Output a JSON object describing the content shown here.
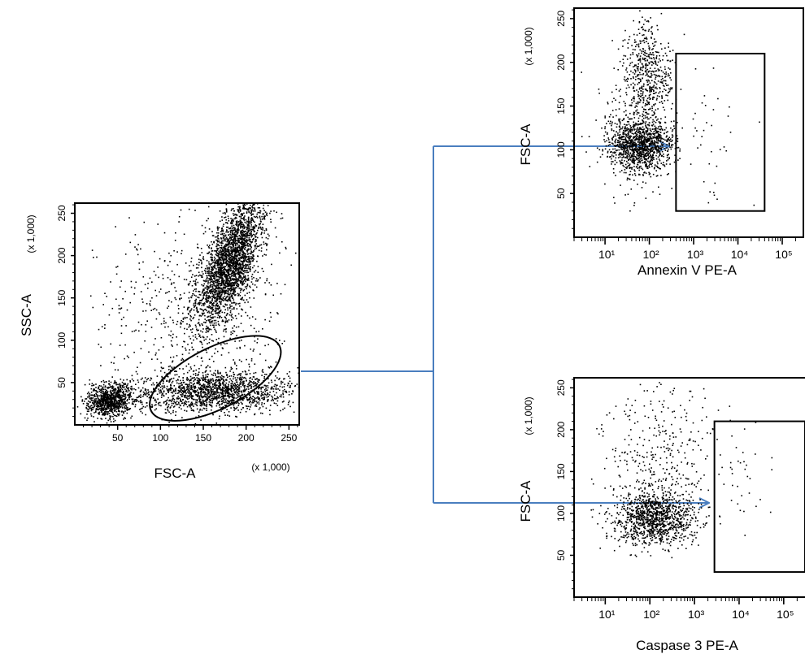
{
  "colors": {
    "arrow": "#4a7ebf",
    "dots": "#000000",
    "frame": "#000000"
  },
  "chart_data": [
    {
      "type": "scatter",
      "panel": "main",
      "xlabel": "FSC-A",
      "ylabel": "SSC-A",
      "x_unit": "(x 1,000)",
      "y_unit": "(x 1,000)",
      "xlim": [
        0,
        262
      ],
      "ylim": [
        0,
        262
      ],
      "x_ticks": [
        50,
        100,
        150,
        200,
        250
      ],
      "y_ticks": [
        50,
        100,
        150,
        200,
        250
      ],
      "x_tick_labels": [
        "50",
        "100",
        "150",
        "200",
        "250"
      ],
      "y_tick_labels": [
        "50",
        "100",
        "150",
        "200",
        "250"
      ],
      "clusters": [
        {
          "cx": 180,
          "cy": 190,
          "sx": 15,
          "sy": 38,
          "n": 2600,
          "tilt": 0.55
        },
        {
          "cx": 160,
          "cy": 40,
          "sx": 45,
          "sy": 12,
          "n": 1600,
          "tilt": 0.3
        },
        {
          "cx": 40,
          "cy": 30,
          "sx": 13,
          "sy": 10,
          "n": 900,
          "tilt": 0.25
        },
        {
          "cx": 140,
          "cy": 130,
          "sx": 60,
          "sy": 60,
          "n": 600,
          "tilt": 0
        }
      ],
      "gate": {
        "shape": "ellipse",
        "cx": 164,
        "cy": 55,
        "rx": 84,
        "ry": 36,
        "angle_deg": 27
      }
    },
    {
      "type": "scatter",
      "panel": "annexin",
      "xlabel": "Annexin V PE-A",
      "ylabel": "FSC-A",
      "y_unit": "(x 1,000)",
      "x_scale": "log",
      "xlim": [
        2,
        300000
      ],
      "ylim": [
        0,
        262
      ],
      "x_ticks": [
        10,
        100,
        1000,
        10000,
        100000
      ],
      "x_tick_labels": [
        "10¹",
        "10²",
        "10³",
        "10⁴",
        "10⁵"
      ],
      "y_ticks": [
        50,
        100,
        150,
        200,
        250
      ],
      "y_tick_labels": [
        "50",
        "100",
        "150",
        "200",
        "250"
      ],
      "clusters": [
        {
          "cx": 60,
          "cy": 105,
          "sx": 0.35,
          "sy": 14,
          "n": 1100,
          "tilt": 0
        },
        {
          "cx": 90,
          "cy": 185,
          "sx": 0.3,
          "sy": 30,
          "n": 550,
          "tilt": 0
        },
        {
          "cx": 40,
          "cy": 110,
          "sx": 0.45,
          "sy": 35,
          "n": 200,
          "tilt": 0
        },
        {
          "cx": 2500,
          "cy": 110,
          "sx": 0.45,
          "sy": 35,
          "n": 35,
          "tilt": 0
        }
      ],
      "gate": {
        "shape": "rect",
        "x0": 400,
        "x1": 40000,
        "y0": 30,
        "y1": 210
      }
    },
    {
      "type": "scatter",
      "panel": "caspase",
      "xlabel": "Caspase 3 PE-A",
      "ylabel": "FSC-A",
      "y_unit": "(x 1,000)",
      "x_scale": "log",
      "xlim": [
        2,
        300000
      ],
      "ylim": [
        0,
        262
      ],
      "x_ticks": [
        10,
        100,
        1000,
        10000,
        100000
      ],
      "x_tick_labels": [
        "10¹",
        "10²",
        "10³",
        "10⁴",
        "10⁵"
      ],
      "y_ticks": [
        50,
        100,
        150,
        200,
        250
      ],
      "y_tick_labels": [
        "50",
        "100",
        "150",
        "200",
        "250"
      ],
      "clusters": [
        {
          "cx": 120,
          "cy": 95,
          "sx": 0.45,
          "sy": 16,
          "n": 1100,
          "tilt": 0
        },
        {
          "cx": 150,
          "cy": 170,
          "sx": 0.55,
          "sy": 45,
          "n": 350,
          "tilt": 0
        },
        {
          "cx": 12000,
          "cy": 150,
          "sx": 0.35,
          "sy": 35,
          "n": 40,
          "tilt": 0
        }
      ],
      "gate": {
        "shape": "rect",
        "x0": 2800,
        "x1": 300000,
        "y0": 30,
        "y1": 210
      }
    }
  ]
}
